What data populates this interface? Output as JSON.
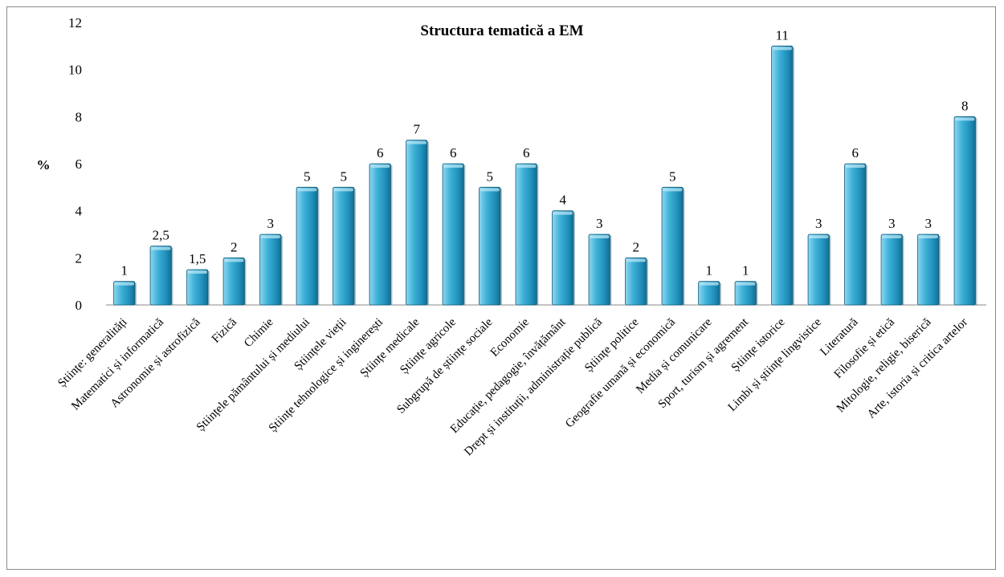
{
  "chart_data": {
    "type": "bar",
    "title": "Structura tematică a EM",
    "ylabel": "%",
    "xlabel": "",
    "ylim": [
      0,
      12
    ],
    "yticks": [
      0,
      2,
      4,
      6,
      8,
      10,
      12
    ],
    "grid": false,
    "legend": "none",
    "bar_color": "#2a9cc4",
    "categories": [
      "Științe: generalități",
      "Matematici și informatică",
      "Astronomie și astrofizică",
      "Fizică",
      "Chimie",
      "Științele pământului și mediului",
      "Științele vieții",
      "Științe tehnologice și inginerești",
      "Științe medicale",
      "Științe agricole",
      "Subgrupă de științe sociale",
      "Economie",
      "Educație, pedagogie, învățământ",
      "Drept și instituții, administrație publică",
      "Științe politice",
      "Geografie umană și economică",
      "Media și comunicare",
      "Sport, turism și agrement",
      "Științe istorice",
      "Limbi și științe lingvistice",
      "Literatură",
      "Filosofie și etică",
      "Mitologie, religie, biserică",
      "Arte, istoria și critica artelor"
    ],
    "values": [
      1,
      2.5,
      1.5,
      2,
      3,
      5,
      5,
      6,
      7,
      6,
      5,
      6,
      4,
      3,
      2,
      5,
      1,
      1,
      11,
      3,
      6,
      3,
      3,
      8
    ],
    "value_labels": [
      "1",
      "2,5",
      "1,5",
      "2",
      "3",
      "5",
      "5",
      "6",
      "7",
      "6",
      "5",
      "6",
      "4",
      "3",
      "2",
      "5",
      "1",
      "1",
      "11",
      "3",
      "6",
      "3",
      "3",
      "8"
    ]
  }
}
